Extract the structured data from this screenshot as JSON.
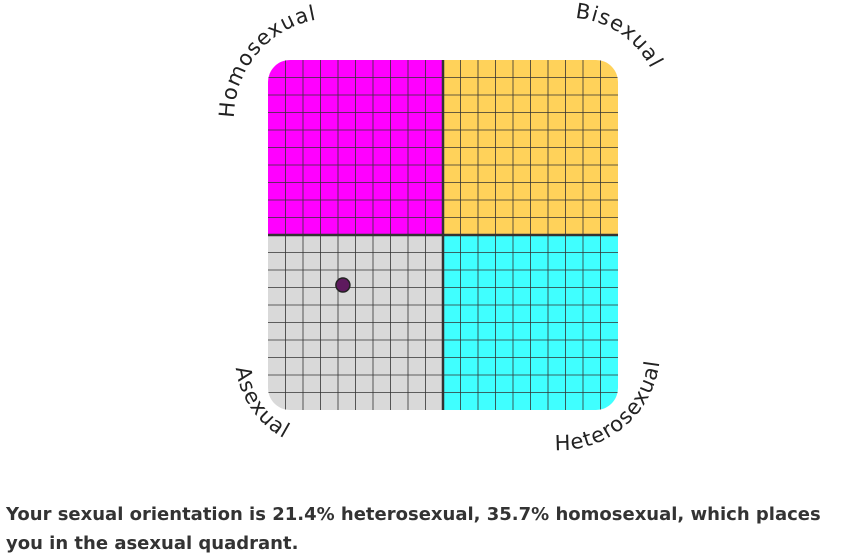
{
  "chart_data": {
    "type": "scatter",
    "quadrants": [
      {
        "label": "Homosexual",
        "color": "#ff00ff"
      },
      {
        "label": "Bisexual",
        "color": "#ffd25a"
      },
      {
        "label": "Asexual",
        "color": "#d9d9d9"
      },
      {
        "label": "Heterosexual",
        "color": "#40ffff"
      }
    ],
    "x": [
      21.4
    ],
    "values": [
      35.7
    ],
    "color": "#5e1a5e",
    "xlim": [
      0,
      100
    ],
    "ylim": [
      0,
      100
    ]
  },
  "caption": "Your sexual orientation is 21.4% heterosexual, 35.7% homosexual, which places you in the asexual quadrant."
}
